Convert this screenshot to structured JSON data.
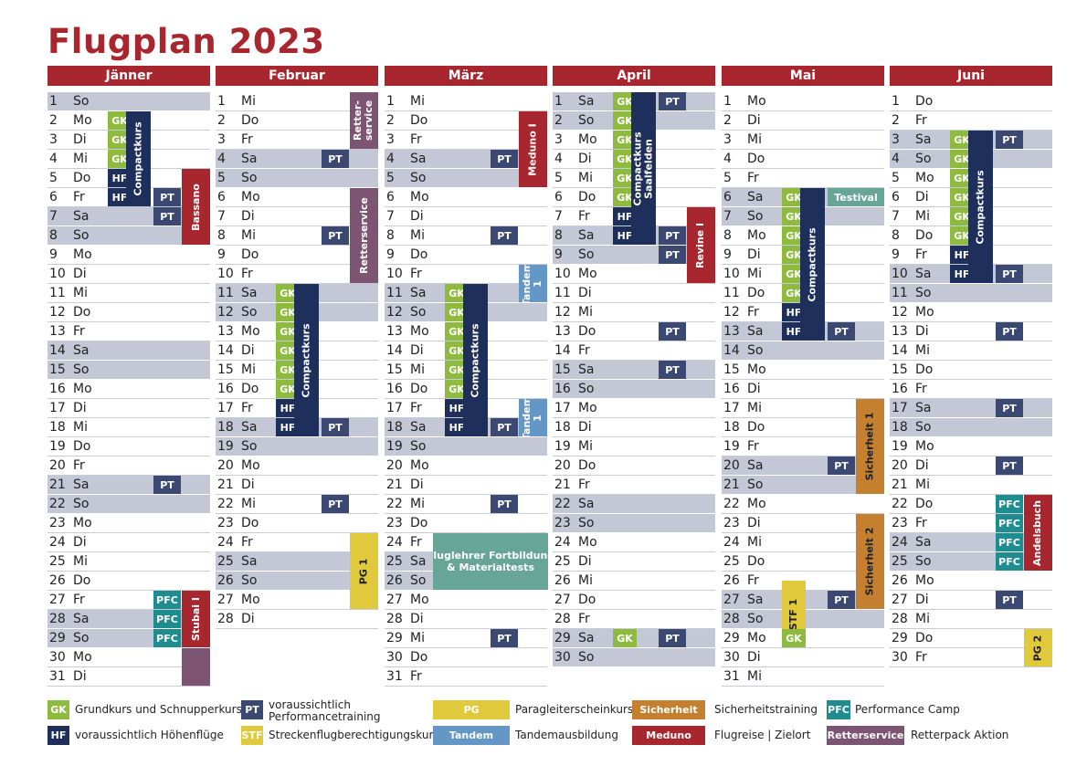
{
  "title": "Flugplan 2023",
  "months": [
    {
      "name": "Jänner",
      "start": 0,
      "days": 31
    },
    {
      "name": "Februar",
      "start": 3,
      "days": 28
    },
    {
      "name": "März",
      "start": 3,
      "days": 31
    },
    {
      "name": "April",
      "start": 6,
      "days": 30
    },
    {
      "name": "Mai",
      "start": 1,
      "days": 31
    },
    {
      "name": "Juni",
      "start": 4,
      "days": 30
    }
  ],
  "weekdays": [
    "So",
    "Mo",
    "Di",
    "Mi",
    "Do",
    "Fr",
    "Sa"
  ],
  "events": [
    {
      "m": 0,
      "col": 1,
      "from": 2,
      "to": 2,
      "label": "GK",
      "cls": "gk"
    },
    {
      "m": 0,
      "col": 1,
      "from": 3,
      "to": 3,
      "label": "GK",
      "cls": "gk"
    },
    {
      "m": 0,
      "col": 1,
      "from": 4,
      "to": 4,
      "label": "GK",
      "cls": "gk"
    },
    {
      "m": 0,
      "col": 1,
      "from": 5,
      "to": 5,
      "label": "HF",
      "cls": "hf"
    },
    {
      "m": 0,
      "col": 1,
      "from": 6,
      "to": 6,
      "label": "HF",
      "cls": "hf"
    },
    {
      "m": 0,
      "col": 2,
      "from": 2,
      "to": 6,
      "label": "Compactkurs",
      "cls": "nav",
      "v": true
    },
    {
      "m": 0,
      "col": 3,
      "from": 6,
      "to": 6,
      "label": "PT",
      "cls": "pt"
    },
    {
      "m": 0,
      "col": 3,
      "from": 7,
      "to": 7,
      "label": "PT",
      "cls": "pt"
    },
    {
      "m": 0,
      "col": 4,
      "from": 5,
      "to": 8,
      "label": "Bassano",
      "cls": "red",
      "v": true
    },
    {
      "m": 0,
      "col": 3,
      "from": 21,
      "to": 21,
      "label": "PT",
      "cls": "pt"
    },
    {
      "m": 0,
      "col": 3,
      "from": 27,
      "to": 27,
      "label": "PFC",
      "cls": "pfc"
    },
    {
      "m": 0,
      "col": 3,
      "from": 28,
      "to": 28,
      "label": "PFC",
      "cls": "pfc"
    },
    {
      "m": 0,
      "col": 3,
      "from": 29,
      "to": 29,
      "label": "PFC",
      "cls": "pfc"
    },
    {
      "m": 0,
      "col": 4,
      "from": 27,
      "to": 29,
      "label": "Stubai I",
      "cls": "red",
      "v": true
    },
    {
      "m": 0,
      "col": 4,
      "from": 30,
      "to": 31,
      "label": "",
      "cls": "pur"
    },
    {
      "m": 1,
      "col": 4,
      "from": 1,
      "to": 3,
      "label": "Retter-\nservice",
      "cls": "pur",
      "v": true
    },
    {
      "m": 1,
      "col": 3,
      "from": 4,
      "to": 4,
      "label": "PT",
      "cls": "pt"
    },
    {
      "m": 1,
      "col": 4,
      "from": 6,
      "to": 10,
      "label": "Retterservice",
      "cls": "pur",
      "v": true
    },
    {
      "m": 1,
      "col": 3,
      "from": 8,
      "to": 8,
      "label": "PT",
      "cls": "pt"
    },
    {
      "m": 1,
      "col": 1,
      "from": 11,
      "to": 11,
      "label": "GK",
      "cls": "gk"
    },
    {
      "m": 1,
      "col": 1,
      "from": 12,
      "to": 12,
      "label": "GK",
      "cls": "gk"
    },
    {
      "m": 1,
      "col": 1,
      "from": 13,
      "to": 13,
      "label": "GK",
      "cls": "gk"
    },
    {
      "m": 1,
      "col": 1,
      "from": 14,
      "to": 14,
      "label": "GK",
      "cls": "gk"
    },
    {
      "m": 1,
      "col": 1,
      "from": 15,
      "to": 15,
      "label": "GK",
      "cls": "gk"
    },
    {
      "m": 1,
      "col": 1,
      "from": 16,
      "to": 16,
      "label": "GK",
      "cls": "gk"
    },
    {
      "m": 1,
      "col": 1,
      "from": 17,
      "to": 17,
      "label": "HF",
      "cls": "hf"
    },
    {
      "m": 1,
      "col": 1,
      "from": 18,
      "to": 18,
      "label": "HF",
      "cls": "hf"
    },
    {
      "m": 1,
      "col": 2,
      "from": 11,
      "to": 18,
      "label": "Compactkurs",
      "cls": "nav",
      "v": true
    },
    {
      "m": 1,
      "col": 3,
      "from": 18,
      "to": 18,
      "label": "PT",
      "cls": "pt"
    },
    {
      "m": 1,
      "col": 3,
      "from": 22,
      "to": 22,
      "label": "PT",
      "cls": "pt"
    },
    {
      "m": 1,
      "col": 4,
      "from": 24,
      "to": 27,
      "label": "PG 1",
      "cls": "yel",
      "v": true
    },
    {
      "m": 2,
      "col": 4,
      "from": 2,
      "to": 5,
      "label": "Meduno I",
      "cls": "red",
      "v": true
    },
    {
      "m": 2,
      "col": 3,
      "from": 4,
      "to": 4,
      "label": "PT",
      "cls": "pt"
    },
    {
      "m": 2,
      "col": 3,
      "from": 8,
      "to": 8,
      "label": "PT",
      "cls": "pt"
    },
    {
      "m": 2,
      "col": 4,
      "from": 10,
      "to": 11,
      "label": "Tandem\n1",
      "cls": "blu",
      "v": true
    },
    {
      "m": 2,
      "col": 1,
      "from": 11,
      "to": 11,
      "label": "GK",
      "cls": "gk"
    },
    {
      "m": 2,
      "col": 1,
      "from": 12,
      "to": 12,
      "label": "GK",
      "cls": "gk"
    },
    {
      "m": 2,
      "col": 1,
      "from": 13,
      "to": 13,
      "label": "GK",
      "cls": "gk"
    },
    {
      "m": 2,
      "col": 1,
      "from": 14,
      "to": 14,
      "label": "GK",
      "cls": "gk"
    },
    {
      "m": 2,
      "col": 1,
      "from": 15,
      "to": 15,
      "label": "GK",
      "cls": "gk"
    },
    {
      "m": 2,
      "col": 1,
      "from": 16,
      "to": 16,
      "label": "GK",
      "cls": "gk"
    },
    {
      "m": 2,
      "col": 1,
      "from": 17,
      "to": 17,
      "label": "HF",
      "cls": "hf"
    },
    {
      "m": 2,
      "col": 1,
      "from": 18,
      "to": 18,
      "label": "HF",
      "cls": "hf"
    },
    {
      "m": 2,
      "col": 2,
      "from": 11,
      "to": 18,
      "label": "Compactkurs",
      "cls": "nav",
      "v": true
    },
    {
      "m": 2,
      "col": 3,
      "from": 18,
      "to": 18,
      "label": "PT",
      "cls": "pt"
    },
    {
      "m": 2,
      "col": 4,
      "from": 17,
      "to": 18,
      "label": "Tandem\n1",
      "cls": "blu",
      "v": true
    },
    {
      "m": 2,
      "col": 3,
      "from": 22,
      "to": 22,
      "label": "PT",
      "cls": "pt"
    },
    {
      "m": 2,
      "col": "wide",
      "from": 24,
      "to": 26,
      "label": "Fluglehrer Fortbildung\n& Materialtests",
      "cls": "tea"
    },
    {
      "m": 2,
      "col": 3,
      "from": 29,
      "to": 29,
      "label": "PT",
      "cls": "pt"
    },
    {
      "m": 3,
      "col": 1,
      "from": 1,
      "to": 1,
      "label": "GK",
      "cls": "gk"
    },
    {
      "m": 3,
      "col": 1,
      "from": 2,
      "to": 2,
      "label": "GK",
      "cls": "gk"
    },
    {
      "m": 3,
      "col": 1,
      "from": 3,
      "to": 3,
      "label": "GK",
      "cls": "gk"
    },
    {
      "m": 3,
      "col": 1,
      "from": 4,
      "to": 4,
      "label": "GK",
      "cls": "gk"
    },
    {
      "m": 3,
      "col": 1,
      "from": 5,
      "to": 5,
      "label": "GK",
      "cls": "gk"
    },
    {
      "m": 3,
      "col": 1,
      "from": 6,
      "to": 6,
      "label": "GK",
      "cls": "gk"
    },
    {
      "m": 3,
      "col": 1,
      "from": 7,
      "to": 7,
      "label": "HF",
      "cls": "hf"
    },
    {
      "m": 3,
      "col": 1,
      "from": 8,
      "to": 8,
      "label": "HF",
      "cls": "hf"
    },
    {
      "m": 3,
      "col": 2,
      "from": 1,
      "to": 8,
      "label": "Compactkurs\nSaalfelden",
      "cls": "nav",
      "v": true
    },
    {
      "m": 3,
      "col": 3,
      "from": 1,
      "to": 1,
      "label": "PT",
      "cls": "pt"
    },
    {
      "m": 3,
      "col": 3,
      "from": 8,
      "to": 8,
      "label": "PT",
      "cls": "pt"
    },
    {
      "m": 3,
      "col": 3,
      "from": 9,
      "to": 9,
      "label": "PT",
      "cls": "pt"
    },
    {
      "m": 3,
      "col": 4,
      "from": 7,
      "to": 10,
      "label": "Revine I",
      "cls": "red",
      "v": true
    },
    {
      "m": 3,
      "col": 3,
      "from": 13,
      "to": 13,
      "label": "PT",
      "cls": "pt"
    },
    {
      "m": 3,
      "col": 3,
      "from": 15,
      "to": 15,
      "label": "PT",
      "cls": "pt"
    },
    {
      "m": 3,
      "col": 1,
      "from": 29,
      "to": 29,
      "label": "GK",
      "cls": "gk"
    },
    {
      "m": 3,
      "col": 3,
      "from": 29,
      "to": 29,
      "label": "PT",
      "cls": "pt"
    },
    {
      "m": 4,
      "col": "34",
      "from": 6,
      "to": 6,
      "label": "Testival",
      "cls": "tea"
    },
    {
      "m": 4,
      "col": 1,
      "from": 6,
      "to": 6,
      "label": "GK",
      "cls": "gk"
    },
    {
      "m": 4,
      "col": 1,
      "from": 7,
      "to": 7,
      "label": "GK",
      "cls": "gk"
    },
    {
      "m": 4,
      "col": 1,
      "from": 8,
      "to": 8,
      "label": "GK",
      "cls": "gk"
    },
    {
      "m": 4,
      "col": 1,
      "from": 9,
      "to": 9,
      "label": "GK",
      "cls": "gk"
    },
    {
      "m": 4,
      "col": 1,
      "from": 10,
      "to": 10,
      "label": "GK",
      "cls": "gk"
    },
    {
      "m": 4,
      "col": 1,
      "from": 11,
      "to": 11,
      "label": "GK",
      "cls": "gk"
    },
    {
      "m": 4,
      "col": 1,
      "from": 12,
      "to": 12,
      "label": "HF",
      "cls": "hf"
    },
    {
      "m": 4,
      "col": 1,
      "from": 13,
      "to": 13,
      "label": "HF",
      "cls": "hf"
    },
    {
      "m": 4,
      "col": 2,
      "from": 6,
      "to": 13,
      "label": "Compactkurs",
      "cls": "nav",
      "v": true
    },
    {
      "m": 4,
      "col": 3,
      "from": 13,
      "to": 13,
      "label": "PT",
      "cls": "pt"
    },
    {
      "m": 4,
      "col": 4,
      "from": 17,
      "to": 21,
      "label": "Sicherheit 1",
      "cls": "orn",
      "v": true
    },
    {
      "m": 4,
      "col": 3,
      "from": 20,
      "to": 20,
      "label": "PT",
      "cls": "pt"
    },
    {
      "m": 4,
      "col": 4,
      "from": 23,
      "to": 27,
      "label": "Sicherheit 2",
      "cls": "orn",
      "v": true
    },
    {
      "m": 4,
      "col": 1,
      "from": 26,
      "to": 29,
      "label": "STF 1",
      "cls": "yel",
      "v": true,
      "top": true
    },
    {
      "m": 4,
      "col": 3,
      "from": 27,
      "to": 27,
      "label": "PT",
      "cls": "pt"
    },
    {
      "m": 4,
      "col": 1,
      "from": 29,
      "to": 29,
      "label": "GK",
      "cls": "gk"
    },
    {
      "m": 5,
      "col": 1,
      "from": 3,
      "to": 3,
      "label": "GK",
      "cls": "gk"
    },
    {
      "m": 5,
      "col": 1,
      "from": 4,
      "to": 4,
      "label": "GK",
      "cls": "gk"
    },
    {
      "m": 5,
      "col": 1,
      "from": 5,
      "to": 5,
      "label": "GK",
      "cls": "gk"
    },
    {
      "m": 5,
      "col": 1,
      "from": 6,
      "to": 6,
      "label": "GK",
      "cls": "gk"
    },
    {
      "m": 5,
      "col": 1,
      "from": 7,
      "to": 7,
      "label": "GK",
      "cls": "gk"
    },
    {
      "m": 5,
      "col": 1,
      "from": 8,
      "to": 8,
      "label": "GK",
      "cls": "gk"
    },
    {
      "m": 5,
      "col": 1,
      "from": 9,
      "to": 9,
      "label": "HF",
      "cls": "hf"
    },
    {
      "m": 5,
      "col": 1,
      "from": 10,
      "to": 10,
      "label": "HF",
      "cls": "hf"
    },
    {
      "m": 5,
      "col": 2,
      "from": 3,
      "to": 10,
      "label": "Compactkurs",
      "cls": "nav",
      "v": true
    },
    {
      "m": 5,
      "col": 3,
      "from": 3,
      "to": 3,
      "label": "PT",
      "cls": "pt"
    },
    {
      "m": 5,
      "col": 3,
      "from": 10,
      "to": 10,
      "label": "PT",
      "cls": "pt"
    },
    {
      "m": 5,
      "col": 3,
      "from": 13,
      "to": 13,
      "label": "PT",
      "cls": "pt"
    },
    {
      "m": 5,
      "col": 3,
      "from": 17,
      "to": 17,
      "label": "PT",
      "cls": "pt"
    },
    {
      "m": 5,
      "col": 3,
      "from": 20,
      "to": 20,
      "label": "PT",
      "cls": "pt"
    },
    {
      "m": 5,
      "col": 3,
      "from": 22,
      "to": 22,
      "label": "PFC",
      "cls": "pfc"
    },
    {
      "m": 5,
      "col": 3,
      "from": 23,
      "to": 23,
      "label": "PFC",
      "cls": "pfc"
    },
    {
      "m": 5,
      "col": 3,
      "from": 24,
      "to": 24,
      "label": "PFC",
      "cls": "pfc"
    },
    {
      "m": 5,
      "col": 3,
      "from": 25,
      "to": 25,
      "label": "PFC",
      "cls": "pfc"
    },
    {
      "m": 5,
      "col": 4,
      "from": 22,
      "to": 25,
      "label": "Andelsbuch",
      "cls": "red",
      "v": true
    },
    {
      "m": 5,
      "col": 3,
      "from": 27,
      "to": 27,
      "label": "PT",
      "cls": "pt"
    },
    {
      "m": 5,
      "col": 4,
      "from": 29,
      "to": 30,
      "label": "PG 2",
      "cls": "yel",
      "v": true
    }
  ],
  "legend": [
    {
      "code": "GK",
      "text": "Grundkurs und Schnupperkurs",
      "cls": "gk"
    },
    {
      "code": "HF",
      "text": "voraussichtlich Höhenflüge",
      "cls": "hf"
    },
    {
      "code": "PT",
      "text": "voraussichtlich\nPerformancetraining",
      "cls": "pt"
    },
    {
      "code": "STF",
      "text": "Streckenflugberechtigungskurs",
      "cls": "yel"
    },
    {
      "code": "PG",
      "text": "Paragleiterscheinkurs",
      "cls": "yel"
    },
    {
      "code": "Tandem",
      "text": "Tandemausbildung",
      "cls": "blu"
    },
    {
      "code": "Sicherheit",
      "text": "Sicherheitstraining",
      "cls": "orn"
    },
    {
      "code": "Meduno",
      "text": "Flugreise | Zielort",
      "cls": "red"
    },
    {
      "code": "PFC",
      "text": "Performance Camp",
      "cls": "pfc"
    },
    {
      "code": "Retterservice",
      "text": "Retterpack Aktion",
      "cls": "pur"
    }
  ]
}
